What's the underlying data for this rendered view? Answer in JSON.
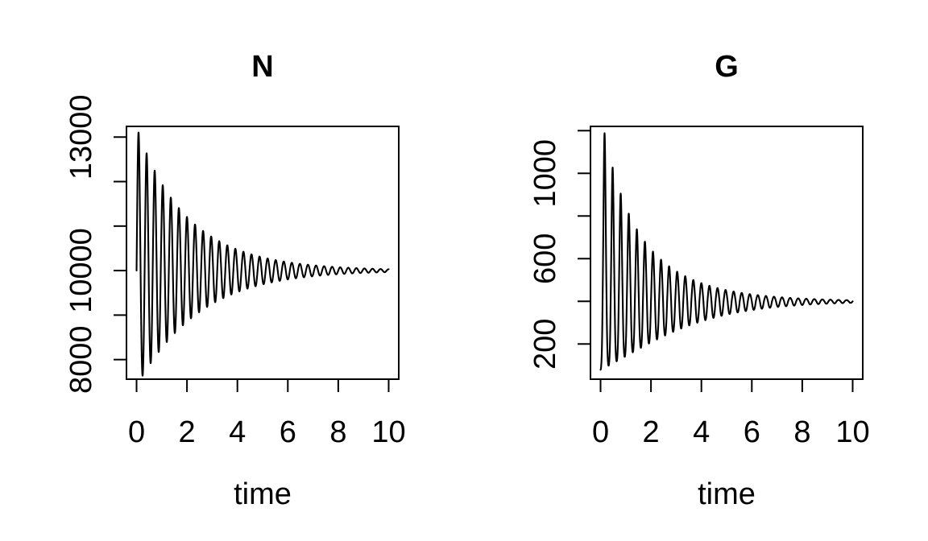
{
  "figure": {
    "background_color": "#ffffff",
    "line_color": "#000000",
    "panels": [
      "N",
      "G"
    ]
  },
  "chart_data": [
    {
      "type": "line",
      "title": "N",
      "xlabel": "time",
      "ylabel": "",
      "grid": false,
      "legend": null,
      "x_ticks": [
        0,
        2,
        4,
        6,
        8,
        10
      ],
      "x_tick_labels": [
        "0",
        "2",
        "4",
        "6",
        "8",
        "10"
      ],
      "x_view": [
        -0.4,
        10.4
      ],
      "y_ticks": [
        8000,
        9000,
        10000,
        11000,
        12000,
        13000
      ],
      "y_tick_labels": [
        "8000",
        "",
        "10000",
        "",
        "",
        "13000"
      ],
      "y_view": [
        7560,
        13240
      ],
      "series": [
        {
          "name": "N",
          "model": "damped_log_oscillation",
          "t_range": [
            0,
            10
          ],
          "equilibrium": 10000,
          "start_value": 10000,
          "first_peak": 13000,
          "first_trough": 7700,
          "final_value": 10000,
          "period": 0.32,
          "decay_rate": 0.45,
          "phase": 0,
          "log_amplitude_up": 0.28,
          "log_amplitude_down": 0.3
        }
      ]
    },
    {
      "type": "line",
      "title": "G",
      "xlabel": "time",
      "ylabel": "",
      "grid": false,
      "legend": null,
      "x_ticks": [
        0,
        2,
        4,
        6,
        8,
        10
      ],
      "x_tick_labels": [
        "0",
        "2",
        "4",
        "6",
        "8",
        "10"
      ],
      "x_view": [
        -0.4,
        10.4
      ],
      "y_ticks": [
        200,
        400,
        600,
        800,
        1000,
        1200
      ],
      "y_tick_labels": [
        "200",
        "",
        "600",
        "",
        "1000",
        ""
      ],
      "y_view": [
        35,
        1220
      ],
      "series": [
        {
          "name": "G",
          "model": "damped_log_oscillation",
          "t_range": [
            0,
            10
          ],
          "equilibrium": 400,
          "start_value": 70,
          "first_peak": 1180,
          "first_trough": 90,
          "final_value": 400,
          "period": 0.32,
          "decay_rate": 0.45,
          "phase": -1.5708,
          "log_amplitude_up": 1.17,
          "log_amplitude_down": 1.62
        }
      ]
    }
  ]
}
